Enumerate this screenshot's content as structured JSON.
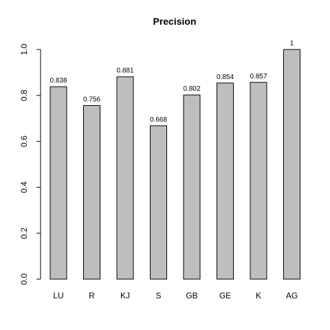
{
  "chart_data": {
    "type": "bar",
    "title": "Precision",
    "xlabel": "",
    "ylabel": "",
    "categories": [
      "LU",
      "R",
      "KJ",
      "S",
      "GB",
      "GE",
      "K",
      "AG"
    ],
    "values": [
      0.838,
      0.756,
      0.881,
      0.668,
      0.802,
      0.854,
      0.857,
      1
    ],
    "data_labels": [
      "0.838",
      "0.756",
      "0.881",
      "0.668",
      "0.802",
      "0.854",
      "0.857",
      "1"
    ],
    "ylim": [
      0,
      1
    ],
    "y_ticks": [
      0.0,
      0.2,
      0.4,
      0.6,
      0.8,
      1.0
    ],
    "y_tick_labels": [
      "0.0",
      "0.2",
      "0.4",
      "0.6",
      "0.8",
      "1.0"
    ],
    "grid": false,
    "legend": "none",
    "colors": {
      "bar_fill": "#bebebe",
      "bar_stroke": "#000000"
    }
  }
}
